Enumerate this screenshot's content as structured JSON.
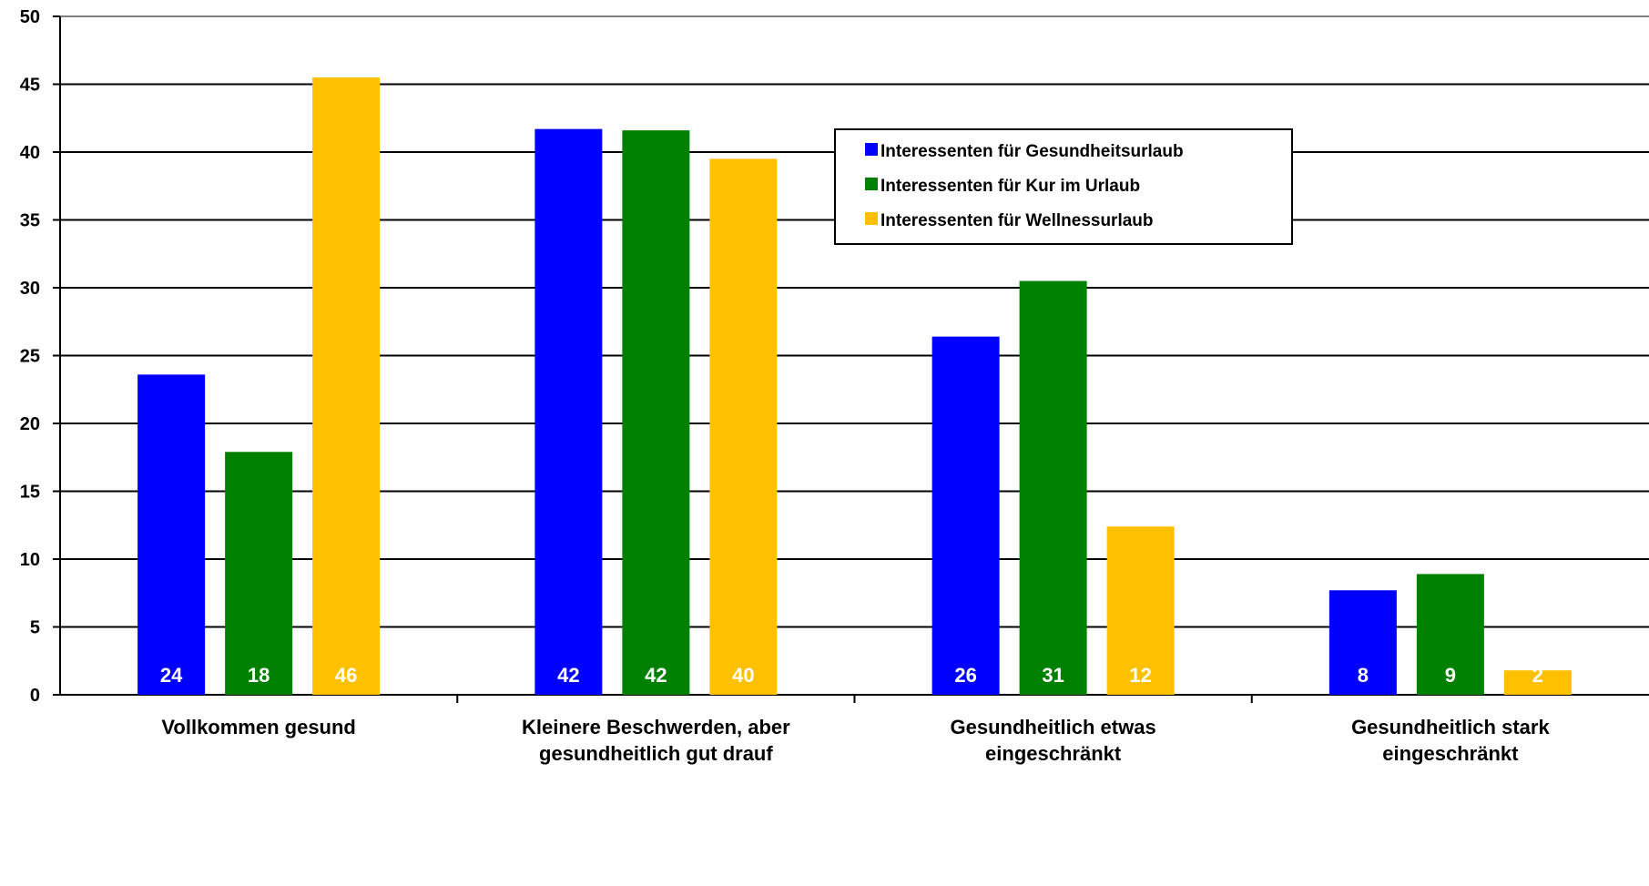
{
  "chart_data": {
    "type": "bar",
    "title": "",
    "xlabel": "",
    "ylabel": "",
    "ylim": [
      0,
      50
    ],
    "yticks": [
      "0",
      "5",
      "10",
      "15",
      "20",
      "25",
      "30",
      "35",
      "40",
      "45",
      "50"
    ],
    "grid": true,
    "legend_position": "top-right",
    "categories": [
      [
        "Vollkommen gesund"
      ],
      [
        "Kleinere Beschwerden, aber",
        "gesundheitlich gut drauf"
      ],
      [
        "Gesundheitlich etwas",
        "eingeschränkt"
      ],
      [
        "Gesundheitlich stark",
        "eingeschränkt"
      ]
    ],
    "series": [
      {
        "name": "Interessenten für Gesundheitsurlaub",
        "color": "#0000ff",
        "values": [
          23.6,
          41.7,
          26.4,
          7.7
        ],
        "labels": [
          "24",
          "42",
          "26",
          "8"
        ]
      },
      {
        "name": "Interessenten für Kur im Urlaub",
        "color": "#008000",
        "values": [
          17.9,
          41.6,
          30.5,
          8.9
        ],
        "labels": [
          "18",
          "42",
          "31",
          "9"
        ]
      },
      {
        "name": "Interessenten für Wellnessurlaub",
        "color": "#ffc000",
        "values": [
          45.5,
          39.5,
          12.4,
          1.8
        ],
        "labels": [
          "46",
          "40",
          "12",
          "2"
        ]
      }
    ]
  }
}
